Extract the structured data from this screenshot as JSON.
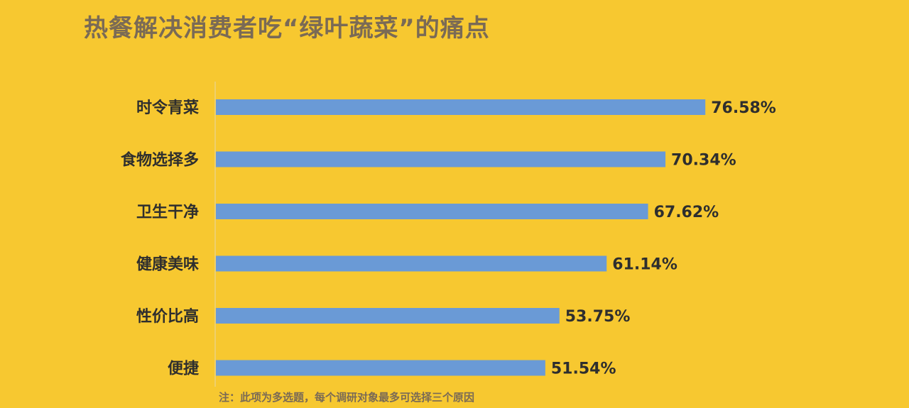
{
  "chart_data": {
    "type": "bar",
    "orientation": "horizontal",
    "title": "热餐解决消费者吃“绿叶蔬菜”的痛点",
    "categories": [
      "时令青菜",
      "食物选择多",
      "卫生干净",
      "健康美味",
      "性价比高",
      "便捷"
    ],
    "values": [
      76.58,
      70.34,
      67.62,
      61.14,
      53.75,
      51.54
    ],
    "value_labels": [
      "76.58%",
      "70.34%",
      "67.62%",
      "61.14%",
      "53.75%",
      "51.54%"
    ],
    "unit": "%",
    "xlim": [
      0,
      100
    ],
    "grid": false,
    "legend": "none",
    "note": "注：此项为多选题，每个调研对象最多可选择三个原因"
  },
  "colors": {
    "background": "#F7C830",
    "bar": "#6A9AD6",
    "title": "#7A6A55",
    "label": "#2E2E2E"
  }
}
